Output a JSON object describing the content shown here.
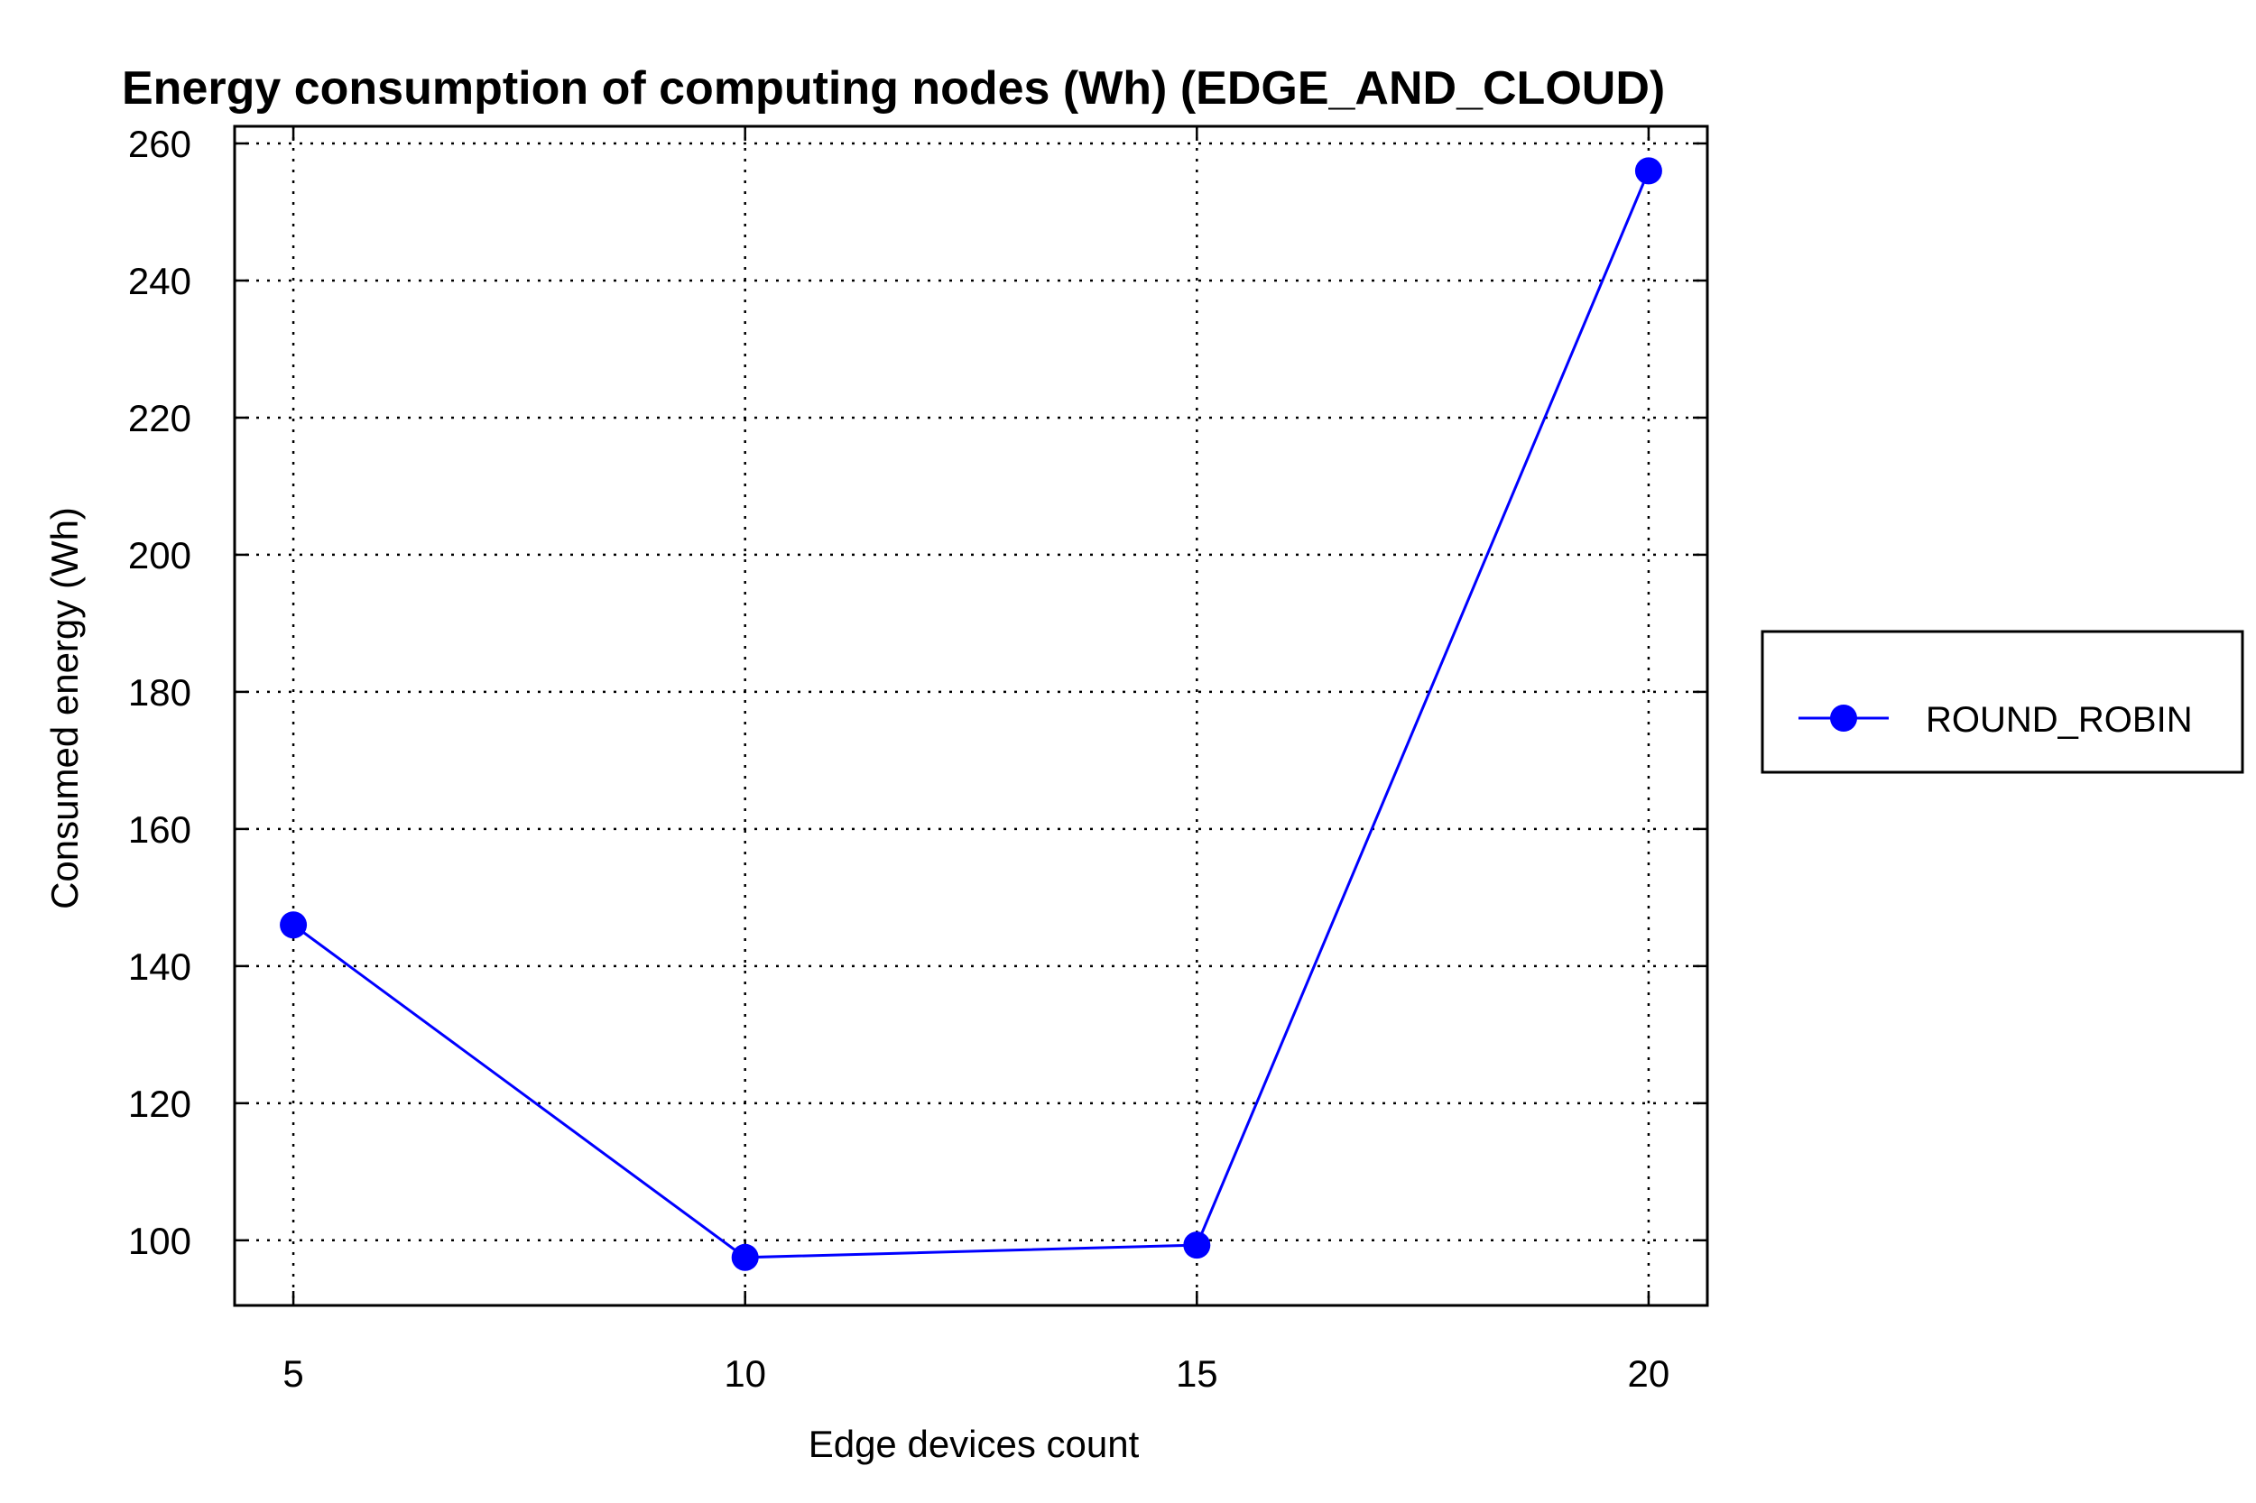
{
  "chart_data": {
    "type": "line",
    "title": "Energy consumption of computing nodes (Wh) (EDGE_AND_CLOUD)",
    "xlabel": "Edge devices count",
    "ylabel": "Consumed energy (Wh)",
    "x": [
      5,
      10,
      15,
      20
    ],
    "x_ticks": [
      "5",
      "10",
      "15",
      "20"
    ],
    "y_ticks": [
      "100",
      "120",
      "140",
      "160",
      "180",
      "200",
      "220",
      "240",
      "260"
    ],
    "xlim": [
      4.35,
      20.65
    ],
    "ylim": [
      90.5,
      262.5
    ],
    "grid": true,
    "legend_position": "right",
    "series": [
      {
        "name": "ROUND_ROBIN",
        "color": "#0000ff",
        "marker": "circle",
        "values": [
          146,
          97.5,
          99.3,
          256
        ]
      }
    ]
  }
}
